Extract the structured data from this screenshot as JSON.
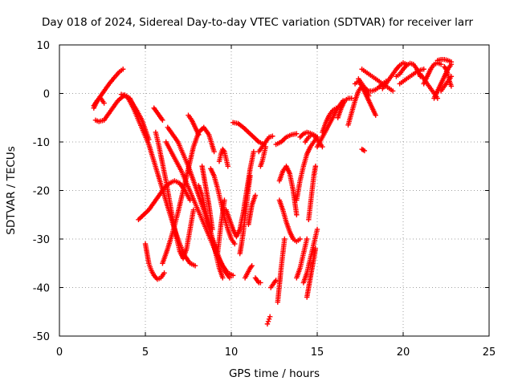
{
  "chart_data": {
    "type": "scatter",
    "title": "Day 018 of 2024, Sidereal Day-to-day VTEC variation (SDTVAR) for receiver larr",
    "xlabel": "GPS time / hours",
    "ylabel": "SDTVAR / TECUs",
    "xlim": [
      0,
      25
    ],
    "ylim": [
      -50,
      10
    ],
    "x_ticks": [
      "0",
      "5",
      "10",
      "15",
      "20",
      "25"
    ],
    "y_ticks": [
      "10",
      "0",
      "-10",
      "-20",
      "-30",
      "-40",
      "-50"
    ],
    "grid": true,
    "marker": "plus",
    "color": "#ff0000",
    "series": [
      {
        "x": [
          2.0,
          2.3,
          2.6,
          2.9,
          3.2,
          3.5,
          3.7
        ],
        "y": [
          -2.5,
          -1.0,
          0.5,
          2.0,
          3.3,
          4.5,
          5.0
        ]
      },
      {
        "x": [
          2.0,
          2.2,
          2.4,
          2.6
        ],
        "y": [
          -3.0,
          -1.5,
          -1.0,
          -2.0
        ]
      },
      {
        "x": [
          2.1,
          2.3,
          2.6,
          3.0,
          3.4,
          3.8,
          4.1,
          4.3,
          4.5
        ],
        "y": [
          -5.5,
          -5.8,
          -5.5,
          -3.5,
          -1.5,
          -0.3,
          -1.0,
          -2.5,
          -4.0
        ]
      },
      {
        "x": [
          3.6,
          3.9,
          4.2,
          4.5,
          4.8,
          5.0,
          5.2
        ],
        "y": [
          -0.2,
          -0.6,
          -1.8,
          -3.5,
          -5.5,
          -7.5,
          -9.5
        ]
      },
      {
        "x": [
          4.0,
          4.3,
          4.6,
          4.9,
          5.2,
          5.5,
          5.8,
          6.1,
          6.4,
          6.7,
          7.0,
          7.3,
          7.6,
          7.9
        ],
        "y": [
          -1.0,
          -3.0,
          -5.5,
          -8.0,
          -10.5,
          -14.0,
          -17.5,
          -21.0,
          -24.5,
          -28.0,
          -31.0,
          -33.5,
          -35.0,
          -35.5
        ]
      },
      {
        "x": [
          4.6,
          4.9,
          5.2,
          5.5,
          5.8,
          6.1,
          6.4,
          6.7,
          7.0,
          7.3,
          7.6
        ],
        "y": [
          -26.0,
          -25.0,
          -24.0,
          -22.5,
          -21.0,
          -19.5,
          -18.5,
          -18.0,
          -18.5,
          -20.0,
          -22.0
        ]
      },
      {
        "x": [
          5.0,
          5.1,
          5.2,
          5.35,
          5.5,
          5.7,
          5.9,
          6.1
        ],
        "y": [
          -31.0,
          -33.0,
          -35.0,
          -36.5,
          -37.5,
          -38.3,
          -38.0,
          -37.0
        ]
      },
      {
        "x": [
          5.5,
          5.6,
          5.7,
          5.8,
          5.9,
          6.0
        ],
        "y": [
          -3.0,
          -3.5,
          -4.0,
          -4.5,
          -5.0,
          -5.5
        ]
      },
      {
        "x": [
          5.6,
          5.8,
          6.0,
          6.2,
          6.4,
          6.6,
          6.8,
          7.0,
          7.2,
          7.4,
          7.6,
          7.8
        ],
        "y": [
          -8.0,
          -11.0,
          -14.5,
          -18.0,
          -22.0,
          -26.0,
          -29.5,
          -32.5,
          -34.0,
          -32.0,
          -28.0,
          -24.0
        ]
      },
      {
        "x": [
          6.3,
          6.6,
          6.9,
          7.2,
          7.5,
          7.8,
          8.1,
          8.4,
          8.7,
          9.0,
          9.3,
          9.6,
          9.9
        ],
        "y": [
          -7.0,
          -8.5,
          -10.0,
          -12.5,
          -15.0,
          -18.0,
          -21.0,
          -24.0,
          -27.5,
          -31.0,
          -34.0,
          -36.5,
          -38.0
        ]
      },
      {
        "x": [
          6.2,
          6.5,
          6.8,
          7.1,
          7.4,
          7.7,
          8.0,
          8.3,
          8.6,
          8.9,
          9.2,
          9.5,
          9.8,
          10.1
        ],
        "y": [
          -10.0,
          -12.0,
          -14.0,
          -16.0,
          -18.5,
          -21.0,
          -23.5,
          -26.0,
          -28.5,
          -31.0,
          -33.5,
          -35.5,
          -37.0,
          -37.5
        ]
      },
      {
        "x": [
          6.0,
          6.3,
          6.6,
          6.9,
          7.2,
          7.5,
          7.8,
          8.1,
          8.4,
          8.7,
          9.0
        ],
        "y": [
          -35.0,
          -32.0,
          -28.5,
          -24.5,
          -20.0,
          -15.5,
          -11.0,
          -8.0,
          -7.0,
          -8.5,
          -12.0
        ]
      },
      {
        "x": [
          7.5,
          7.7,
          7.9,
          8.1
        ],
        "y": [
          -4.5,
          -5.5,
          -7.0,
          -8.5
        ]
      },
      {
        "x": [
          8.1,
          8.3,
          8.5,
          8.7,
          8.9,
          9.1,
          9.3,
          9.5
        ],
        "y": [
          -19.0,
          -21.0,
          -24.0,
          -27.0,
          -30.0,
          -33.0,
          -36.0,
          -38.0
        ]
      },
      {
        "x": [
          8.3,
          8.4,
          8.5,
          8.6,
          8.7,
          8.8,
          8.9
        ],
        "y": [
          -15.0,
          -17.0,
          -19.0,
          -21.0,
          -23.0,
          -25.5,
          -28.0
        ]
      },
      {
        "x": [
          8.8,
          9.0,
          9.2,
          9.4,
          9.6,
          9.8,
          10.0,
          10.2
        ],
        "y": [
          -15.5,
          -17.0,
          -19.5,
          -22.5,
          -25.5,
          -28.0,
          -30.0,
          -31.0
        ]
      },
      {
        "x": [
          9.2,
          9.3,
          9.4,
          9.5,
          9.6
        ],
        "y": [
          -33.0,
          -30.0,
          -27.0,
          -24.5,
          -22.0
        ]
      },
      {
        "x": [
          9.3,
          9.4,
          9.5,
          9.6,
          9.7,
          9.8
        ],
        "y": [
          -14.0,
          -12.5,
          -11.5,
          -12.0,
          -13.5,
          -15.0
        ]
      },
      {
        "x": [
          9.7,
          9.9,
          10.1,
          10.3,
          10.5,
          10.7,
          10.9,
          11.1,
          11.3
        ],
        "y": [
          -24.0,
          -26.0,
          -28.0,
          -29.5,
          -28.0,
          -24.5,
          -20.0,
          -15.5,
          -12.0
        ]
      },
      {
        "x": [
          10.1,
          10.4,
          10.7,
          11.0,
          11.3,
          11.6,
          11.9
        ],
        "y": [
          -6.0,
          -6.2,
          -7.0,
          -8.0,
          -9.0,
          -10.0,
          -10.5
        ]
      },
      {
        "x": [
          10.5,
          10.6,
          10.7,
          10.8,
          10.9,
          11.0,
          11.1
        ],
        "y": [
          -33.0,
          -31.0,
          -28.5,
          -25.5,
          -22.5,
          -19.5,
          -17.0
        ]
      },
      {
        "x": [
          10.8,
          10.95,
          11.1,
          11.2
        ],
        "y": [
          -38.0,
          -37.0,
          -36.0,
          -35.5
        ]
      },
      {
        "x": [
          11.0,
          11.1,
          11.2,
          11.3,
          11.4
        ],
        "y": [
          -27.0,
          -25.0,
          -23.0,
          -22.0,
          -21.0
        ]
      },
      {
        "x": [
          11.4,
          11.5,
          11.6,
          11.7
        ],
        "y": [
          -38.0,
          -38.5,
          -39.0,
          -39.0
        ]
      },
      {
        "x": [
          11.6,
          11.8,
          12.0,
          12.2,
          12.4
        ],
        "y": [
          -12.0,
          -11.0,
          -10.0,
          -9.0,
          -8.8
        ]
      },
      {
        "x": [
          11.7,
          11.8,
          11.9,
          12.0
        ],
        "y": [
          -15.0,
          -14.0,
          -12.5,
          -11.0
        ]
      },
      {
        "x": [
          12.1,
          12.15,
          12.2,
          12.25
        ],
        "y": [
          -47.5,
          -47.0,
          -46.5,
          -46.0
        ]
      },
      {
        "x": [
          12.3,
          12.5,
          12.6
        ],
        "y": [
          -40.0,
          -39.0,
          -38.5
        ]
      },
      {
        "x": [
          12.6,
          12.9,
          13.2,
          13.5,
          13.8
        ],
        "y": [
          -10.5,
          -10.0,
          -9.0,
          -8.5,
          -8.3
        ]
      },
      {
        "x": [
          12.7,
          12.8,
          12.9,
          13.0,
          13.1
        ],
        "y": [
          -43.0,
          -39.5,
          -36.0,
          -33.0,
          -30.0
        ]
      },
      {
        "x": [
          12.8,
          13.0,
          13.2,
          13.4,
          13.6,
          13.8
        ],
        "y": [
          -18.0,
          -16.0,
          -15.0,
          -16.5,
          -20.0,
          -25.0
        ]
      },
      {
        "x": [
          12.8,
          13.0,
          13.2,
          13.4,
          13.6,
          13.8,
          14.0
        ],
        "y": [
          -22.0,
          -24.0,
          -26.5,
          -28.5,
          -30.0,
          -30.5,
          -30.0
        ]
      },
      {
        "x": [
          13.8,
          14.0,
          14.2,
          14.4
        ],
        "y": [
          -38.0,
          -36.0,
          -33.0,
          -30.0
        ]
      },
      {
        "x": [
          13.8,
          14.0,
          14.2,
          14.4,
          14.6,
          14.8,
          15.0
        ],
        "y": [
          -22.0,
          -18.0,
          -15.0,
          -12.5,
          -11.0,
          -10.0,
          -9.0
        ]
      },
      {
        "x": [
          14.0,
          14.2,
          14.4,
          14.6,
          14.8,
          15.0
        ],
        "y": [
          -9.0,
          -8.3,
          -8.0,
          -8.2,
          -8.5,
          -9.0
        ]
      },
      {
        "x": [
          14.2,
          14.4,
          14.6,
          14.8,
          15.0
        ],
        "y": [
          -39.0,
          -37.0,
          -34.0,
          -31.0,
          -28.0
        ]
      },
      {
        "x": [
          14.3,
          14.5,
          14.7,
          14.9,
          15.1,
          15.3
        ],
        "y": [
          -10.0,
          -9.0,
          -8.5,
          -9.0,
          -10.0,
          -11.0
        ]
      },
      {
        "x": [
          14.4,
          14.5,
          14.6,
          14.7,
          14.8,
          14.9
        ],
        "y": [
          -42.0,
          -40.0,
          -38.0,
          -36.0,
          -34.0,
          -32.0
        ]
      },
      {
        "x": [
          14.5,
          14.6,
          14.7,
          14.8,
          14.9
        ],
        "y": [
          -26.0,
          -23.0,
          -20.0,
          -17.0,
          -15.0
        ]
      },
      {
        "x": [
          15.0,
          15.3,
          15.6,
          15.9,
          16.2,
          16.5
        ],
        "y": [
          -11.0,
          -9.0,
          -7.0,
          -5.0,
          -3.0,
          -1.5
        ]
      },
      {
        "x": [
          15.3,
          15.5,
          15.7,
          15.9,
          16.1
        ],
        "y": [
          -8.0,
          -6.0,
          -4.5,
          -3.5,
          -3.0
        ]
      },
      {
        "x": [
          16.2,
          16.4,
          16.6,
          16.8,
          17.0
        ],
        "y": [
          -5.0,
          -3.0,
          -1.5,
          -1.0,
          -1.0
        ]
      },
      {
        "x": [
          16.8,
          17.0,
          17.2,
          17.4,
          17.6,
          17.8,
          18.0
        ],
        "y": [
          -6.5,
          -4.0,
          -1.5,
          0.5,
          1.5,
          1.0,
          -0.5
        ]
      },
      {
        "x": [
          17.2,
          17.4,
          17.6,
          17.8,
          18.0,
          18.2,
          18.4
        ],
        "y": [
          2.0,
          2.5,
          1.5,
          0.0,
          -1.5,
          -3.0,
          -4.5
        ]
      },
      {
        "x": [
          17.4,
          17.6,
          17.8,
          18.0,
          18.2,
          18.4,
          18.6,
          18.8,
          19.0
        ],
        "y": [
          3.0,
          2.0,
          1.0,
          0.5,
          0.5,
          0.8,
          1.3,
          2.0,
          2.5
        ]
      },
      {
        "x": [
          17.6,
          17.8,
          18.0,
          18.2,
          18.4,
          18.6,
          18.8,
          19.0,
          19.2,
          19.4
        ],
        "y": [
          5.0,
          4.5,
          4.0,
          3.5,
          3.0,
          2.5,
          2.0,
          1.5,
          1.0,
          0.5
        ]
      },
      {
        "x": [
          17.6,
          17.75
        ],
        "y": [
          -11.5,
          -11.8
        ]
      },
      {
        "x": [
          18.8,
          19.0,
          19.2,
          19.4,
          19.6,
          19.8,
          20.0,
          20.2
        ],
        "y": [
          1.0,
          2.0,
          3.0,
          4.0,
          5.0,
          5.8,
          6.3,
          6.0
        ]
      },
      {
        "x": [
          19.6,
          19.8,
          20.0,
          20.2,
          20.4,
          20.6,
          20.8,
          21.0
        ],
        "y": [
          3.5,
          4.0,
          5.0,
          5.8,
          6.2,
          6.0,
          5.0,
          3.5
        ]
      },
      {
        "x": [
          19.8,
          20.0,
          20.2,
          20.4,
          20.6,
          20.8,
          21.0,
          21.2
        ],
        "y": [
          2.0,
          2.5,
          3.0,
          3.5,
          4.0,
          4.5,
          4.8,
          5.0
        ]
      },
      {
        "x": [
          21.0,
          21.2,
          21.4,
          21.6,
          21.8,
          22.0
        ],
        "y": [
          4.0,
          3.0,
          2.0,
          1.0,
          0.0,
          -1.0
        ]
      },
      {
        "x": [
          21.2,
          21.4,
          21.6,
          21.8,
          22.0,
          22.2
        ],
        "y": [
          2.0,
          3.5,
          5.0,
          6.0,
          6.3,
          6.0
        ]
      },
      {
        "x": [
          21.8,
          22.0,
          22.2,
          22.4,
          22.6,
          22.8
        ],
        "y": [
          -1.0,
          0.5,
          2.0,
          3.5,
          5.0,
          6.0
        ]
      },
      {
        "x": [
          22.0,
          22.2,
          22.4,
          22.6,
          22.8
        ],
        "y": [
          6.8,
          7.0,
          7.0,
          6.8,
          6.5
        ]
      },
      {
        "x": [
          22.2,
          22.4,
          22.6,
          22.8
        ],
        "y": [
          0.5,
          1.5,
          2.5,
          3.5
        ]
      },
      {
        "x": [
          22.4,
          22.5,
          22.6,
          22.7,
          22.8
        ],
        "y": [
          5.5,
          5.0,
          4.0,
          2.5,
          1.5
        ]
      }
    ]
  }
}
